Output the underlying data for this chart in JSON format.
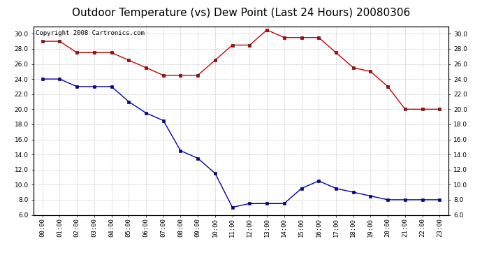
{
  "title": "Outdoor Temperature (vs) Dew Point (Last 24 Hours) 20080306",
  "copyright": "Copyright 2008 Cartronics.com",
  "x_labels": [
    "00:00",
    "01:00",
    "02:00",
    "03:00",
    "04:00",
    "05:00",
    "06:00",
    "07:00",
    "08:00",
    "09:00",
    "10:00",
    "11:00",
    "12:00",
    "13:00",
    "14:00",
    "15:00",
    "16:00",
    "17:00",
    "18:00",
    "19:00",
    "20:00",
    "21:00",
    "22:00",
    "23:00"
  ],
  "temp_data": [
    29.0,
    29.0,
    27.5,
    27.5,
    27.5,
    26.5,
    25.5,
    24.5,
    24.5,
    24.5,
    26.5,
    28.5,
    28.5,
    30.5,
    29.5,
    29.5,
    29.5,
    27.5,
    25.5,
    25.0,
    23.0,
    20.0,
    20.0,
    20.0
  ],
  "dew_data": [
    24.0,
    24.0,
    23.0,
    23.0,
    23.0,
    21.0,
    19.5,
    18.5,
    14.5,
    13.5,
    11.5,
    7.0,
    7.5,
    7.5,
    7.5,
    9.5,
    10.5,
    9.5,
    9.0,
    8.5,
    8.0,
    8.0,
    8.0,
    8.0
  ],
  "temp_color": "#cc0000",
  "dew_color": "#0000bb",
  "bg_color": "#ffffff",
  "plot_bg_color": "#ffffff",
  "grid_color": "#bbbbbb",
  "ylim": [
    6.0,
    31.0
  ],
  "yticks": [
    6.0,
    8.0,
    10.0,
    12.0,
    14.0,
    16.0,
    18.0,
    20.0,
    22.0,
    24.0,
    26.0,
    28.0,
    30.0
  ],
  "title_fontsize": 11,
  "copyright_fontsize": 6.5,
  "axis_fontsize": 6.5
}
